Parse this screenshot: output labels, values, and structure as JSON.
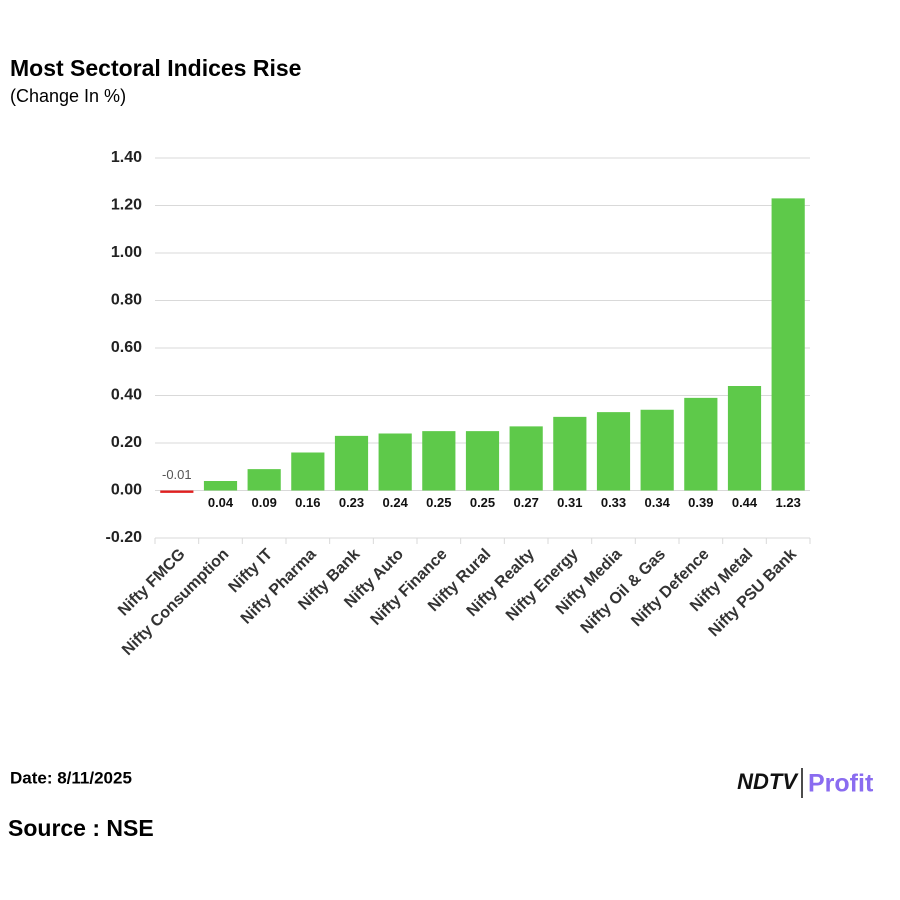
{
  "chart_data": {
    "type": "bar",
    "title": "Most Sectoral Indices Rise",
    "subtitle": "(Change In %)",
    "categories": [
      "Nifty FMCG",
      "Nifty Consumption",
      "Nifty IT",
      "Nifty Pharma",
      "Nifty Bank",
      "Nifty Auto",
      "Nifty Finance",
      "Nifty Rural",
      "Nifty Realty",
      "Nifty Energy",
      "Nifty Media",
      "Nifty Oil & Gas",
      "Nifty Defence",
      "Nifty Metal",
      "Nifty PSU Bank"
    ],
    "values": [
      -0.01,
      0.04,
      0.09,
      0.16,
      0.23,
      0.24,
      0.25,
      0.25,
      0.27,
      0.31,
      0.33,
      0.34,
      0.39,
      0.44,
      1.23
    ],
    "color": "#5ec94a",
    "negative_color": "#e02020",
    "ylim": [
      -0.2,
      1.4
    ],
    "yticks": [
      {
        "value": -0.2,
        "label": "-0.20"
      },
      {
        "value": 0,
        "label": "0.00"
      },
      {
        "value": 0.2,
        "label": "0.20"
      },
      {
        "value": 0.4,
        "label": "0.40"
      },
      {
        "value": 0.6,
        "label": "0.60"
      },
      {
        "value": 0.8,
        "label": "0.80"
      },
      {
        "value": 1.0,
        "label": "1.00"
      },
      {
        "value": 1.2,
        "label": "1.20"
      },
      {
        "value": 1.4,
        "label": "1.40"
      }
    ],
    "grid": true
  },
  "footer": {
    "date": "Date: 8/11/2025",
    "source": "Source : NSE",
    "logo_left": "NDTV",
    "logo_right": "Profit"
  }
}
